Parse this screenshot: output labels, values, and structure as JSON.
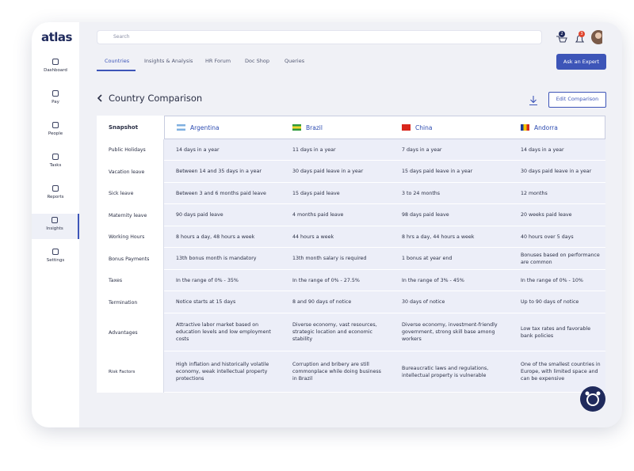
{
  "logo": "atlas",
  "search_placeholder": "Search",
  "badges": {
    "cart": 2,
    "notifications": 3
  },
  "sidebar": [
    "Dashboard",
    "Pay",
    "People",
    "Tasks",
    "Reports",
    "Insights",
    "Settings"
  ],
  "tabs": [
    "Countries",
    "Insights & Analysis",
    "HR Forum",
    "Doc Shop",
    "Queries"
  ],
  "cta_button": "Ask an Expert",
  "page_title": "Country Comparison",
  "edit_button": "Edit Comparison",
  "table": {
    "corner": "Snapshot",
    "countries": [
      "Argentina",
      "Brazil",
      "China",
      "Andorra"
    ],
    "rows": [
      {
        "label": "Public Holidays",
        "cells": [
          "14 days in a year",
          "11 days in a year",
          "7 days in a year",
          "14 days in a year"
        ]
      },
      {
        "label": "Vacation leave",
        "cells": [
          "Between 14 and 35 days in a year",
          "30 days paid leave in a year",
          "15 days paid leave in a year",
          "30 days paid leave in a year"
        ]
      },
      {
        "label": "Sick leave",
        "cells": [
          "Between 3 and 6 months paid leave",
          "15 days paid leave",
          "3 to 24 months",
          "12 months"
        ]
      },
      {
        "label": "Maternity leave",
        "cells": [
          "90 days paid leave",
          "4 months paid leave",
          "98 days paid leave",
          "20 weeks paid leave"
        ]
      },
      {
        "label": "Working Hours",
        "cells": [
          "8 hours a day, 48 hours a week",
          "44 hours a week",
          "8 hrs a day, 44 hours a  week",
          "40 hours over 5 days"
        ]
      },
      {
        "label": "Bonus Payments",
        "cells": [
          "13th bonus month is mandatory",
          "13th month salary is required",
          "1 bonus at year end",
          "Bonuses based on performance are common"
        ]
      },
      {
        "label": "Taxes",
        "cells": [
          "In the range of 0% - 35%",
          "In the range of 0% - 27.5%",
          "In the range of 3% - 45%",
          "In the range of 0% - 10%"
        ]
      },
      {
        "label": "Termination",
        "cells": [
          "Notice starts at 15 days",
          "8 and 90 days of notice",
          "30 days of notice",
          "Up to 90 days of notice"
        ]
      },
      {
        "label": "Advantages",
        "cells": [
          "Attractive labor market based on education levels and low employment costs",
          "Diverse economy, vast resources, strategic location and economic stability",
          "Diverse economy, investment-friendly government, strong skill base among workers",
          "Low tax rates and favorable bank policies"
        ]
      },
      {
        "label": "Risk Factors",
        "cells": [
          "High inflation and historically volatile economy, weak intellectual property protections",
          "Corruption and bribery are still commonplace while doing business in Brazil",
          "Bureaucratic laws and regulations, intellectual property is vulnerable",
          "One of the smallest countries in Europe, with limited space and can be expensive"
        ]
      }
    ]
  }
}
